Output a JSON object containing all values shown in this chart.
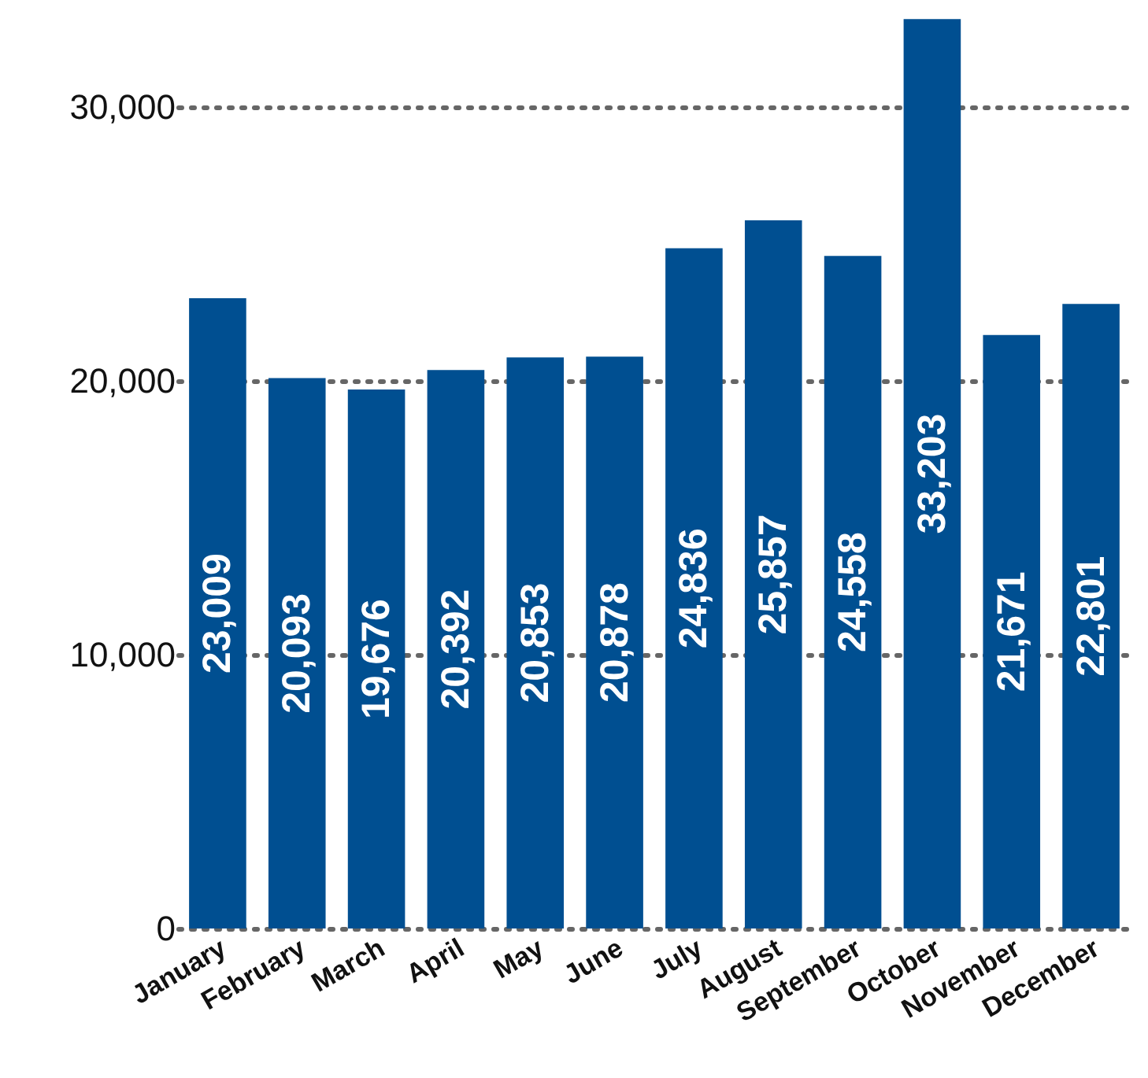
{
  "chart_data": {
    "type": "bar",
    "categories": [
      "January",
      "February",
      "March",
      "April",
      "May",
      "June",
      "July",
      "August",
      "September",
      "October",
      "November",
      "December"
    ],
    "values": [
      23009,
      20093,
      19676,
      20392,
      20853,
      20878,
      24836,
      25857,
      24558,
      33203,
      21671,
      22801
    ],
    "value_labels": [
      "23,009",
      "20,093",
      "19,676",
      "20,392",
      "20,853",
      "20,878",
      "24,836",
      "25,857",
      "24,558",
      "33,203",
      "21,671",
      "22,801"
    ],
    "color": "#004f91",
    "ylim": [
      0,
      33900
    ],
    "yticks": [
      0,
      {
        "value": 10000,
        "label": "10,000"
      },
      {
        "value": 20000,
        "label": "20,000"
      },
      {
        "value": 30000,
        "label": "30,000"
      }
    ],
    "grid": "y"
  }
}
